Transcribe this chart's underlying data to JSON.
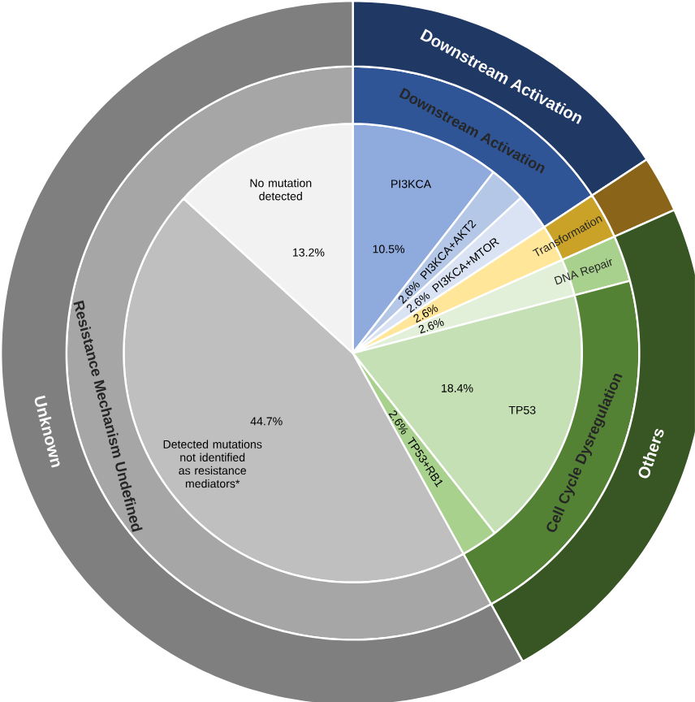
{
  "chart_data": [
    {
      "type": "pie",
      "categories": [
        "PI3KCA",
        "PI3KCA+AKT2",
        "PI3KCA+MTOR",
        null,
        null,
        "TP53",
        "TP53+RB1",
        "Detected mutations not identified as resistance mediators*",
        "No mutation detected"
      ],
      "values": [
        10.5,
        2.6,
        2.6,
        2.6,
        2.6,
        18.4,
        2.6,
        44.7,
        13.2
      ],
      "value_labels": [
        "10.5%",
        "2.6%",
        "2.6%",
        "2.6%",
        "2.6%",
        "18.4%",
        "2.6%",
        "44.7%",
        "13.2%"
      ],
      "colors": [
        "#8faadc",
        "#b4c7e7",
        "#dae3f3",
        "#ffe699",
        "#e2f0d9",
        "#c5e0b4",
        "#a9d18e",
        "#bfbfbf",
        "#f2f2f2"
      ]
    },
    {
      "type": "donut",
      "categories": [
        "Downstream Activation",
        "Transformation",
        "DNA Repair",
        "Cell Cycle Dysregulation",
        "Resistance Mechanism Undefined"
      ],
      "values": [
        15.7,
        2.6,
        2.6,
        21.0,
        57.9
      ],
      "colors": [
        "#2f5597",
        "#c9a227",
        "#a9d18e",
        "#548235",
        "#a6a6a6"
      ]
    },
    {
      "type": "donut",
      "categories": [
        "Downstream Activation",
        null,
        "Others",
        "Unknown"
      ],
      "values": [
        15.7,
        2.6,
        23.6,
        57.9
      ],
      "colors": [
        "#1f3864",
        "#8a6418",
        "#375623",
        "#7f7f7f"
      ]
    }
  ]
}
